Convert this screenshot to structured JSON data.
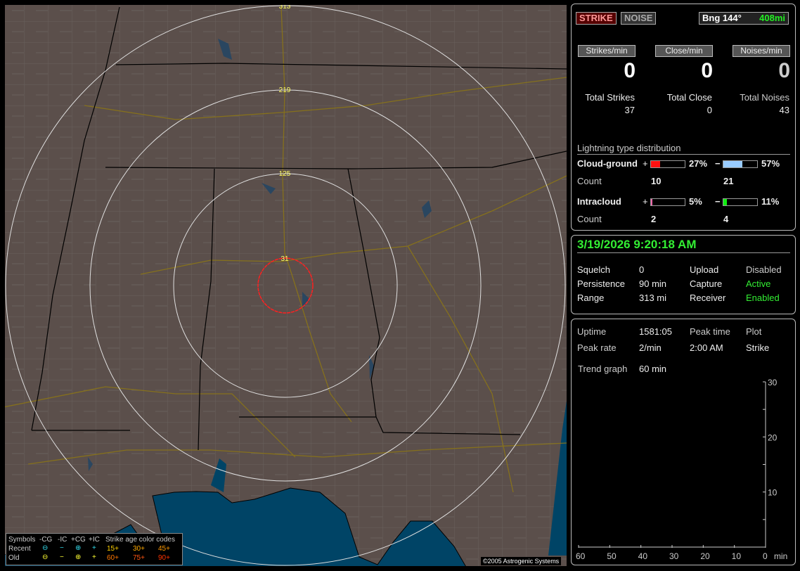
{
  "map": {
    "range_rings": [
      "313",
      "219",
      "125",
      "31"
    ],
    "copyright": "©2005 Astrogenic Systems",
    "legend": {
      "headers": [
        "Symbols",
        "-CG",
        "-IC",
        "+CG",
        "+IC",
        "Strike age color codes"
      ],
      "rows": [
        {
          "label": "Recent",
          "symbols": [
            "⊖",
            "−",
            "⊕",
            "+"
          ],
          "ages": [
            "15+",
            "30+",
            "45+"
          ],
          "symbol_color": "#33ddee",
          "age_colors": [
            "#ffd000",
            "#ffaa00",
            "#ff9900"
          ]
        },
        {
          "label": "Old",
          "symbols": [
            "⊖",
            "−",
            "⊕",
            "+"
          ],
          "ages": [
            "60+",
            "75+",
            "90+"
          ],
          "symbol_color": "#ffff33",
          "age_colors": [
            "#ff7700",
            "#ff5511",
            "#ff3300"
          ]
        }
      ]
    },
    "colors": {
      "land": "#5b4f4b",
      "water": "#004466",
      "ring": "#e0e0e0",
      "close_ring": "#ff2020"
    }
  },
  "status": {
    "strike_button": "STRIKE",
    "noise_button": "NOISE",
    "bearing": "Bng 144°",
    "distance": "408mi",
    "rates": [
      {
        "label": "Strikes/min",
        "value": "0"
      },
      {
        "label": "Close/min",
        "value": "0"
      },
      {
        "label": "Noises/min",
        "value": "0"
      }
    ],
    "totals": [
      {
        "label": "Total Strikes",
        "value": "37"
      },
      {
        "label": "Total Close",
        "value": "0"
      },
      {
        "label": "Total Noises",
        "value": "43"
      }
    ],
    "distribution": {
      "title": "Lightning type distribution",
      "cloud_ground": {
        "label": "Cloud-ground",
        "pos_pct": 27,
        "pos_text": "27%",
        "neg_pct": 57,
        "neg_text": "57%",
        "count_label": "Count",
        "pos_count": "10",
        "neg_count": "21",
        "pos_color": "#ff1010",
        "neg_color": "#99ccff"
      },
      "intracloud": {
        "label": "Intracloud",
        "pos_pct": 5,
        "pos_text": "5%",
        "neg_pct": 11,
        "neg_text": "11%",
        "count_label": "Count",
        "pos_count": "2",
        "neg_count": "4",
        "pos_color": "#ee66aa",
        "neg_color": "#11ee11"
      },
      "plus": "+",
      "minus": "−"
    }
  },
  "settings": {
    "datetime": "3/19/2026 9:20:18 AM",
    "rows": [
      {
        "k1": "Squelch",
        "v1": "0",
        "k2": "Upload",
        "v2": "Disabled"
      },
      {
        "k1": "Persistence",
        "v1": "90 min",
        "k2": "Capture",
        "v2": "Active"
      },
      {
        "k1": "Range",
        "v1": "313 mi",
        "k2": "Receiver",
        "v2": "Enabled"
      }
    ]
  },
  "trend": {
    "uptime_label": "Uptime",
    "uptime": "1581:05",
    "peak_time_label": "Peak time",
    "plot_label": "Plot",
    "peak_rate_label": "Peak rate",
    "peak_rate": "2/min",
    "peak_time": "2:00 AM",
    "plot": "Strike",
    "graph_label": "Trend graph",
    "graph_span": "60 min"
  },
  "chart_data": {
    "type": "bar",
    "x_ticks": [
      "60",
      "50",
      "40",
      "30",
      "20",
      "10",
      "0"
    ],
    "x_unit": "min",
    "y_ticks": [
      "30",
      "20",
      "10"
    ],
    "ylim": [
      0,
      30
    ],
    "xlim": [
      60,
      0
    ],
    "values": []
  }
}
